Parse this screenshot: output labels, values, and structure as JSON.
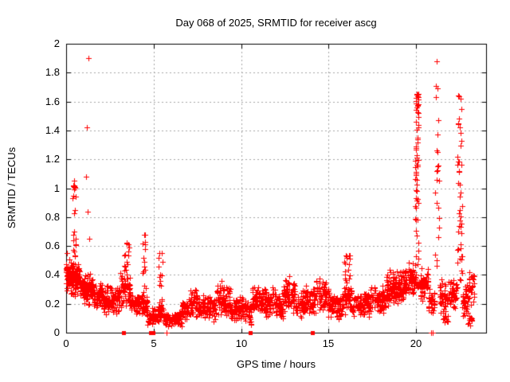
{
  "colors": {
    "marker": "#ff0000",
    "grid": "#a6a6a6",
    "axis": "#000000",
    "background": "#ffffff",
    "text": "#000000"
  },
  "chart_data": {
    "type": "scatter",
    "title": "Day 068 of 2025, SRMTID for receiver ascg",
    "xlabel": "GPS time / hours",
    "ylabel": "SRMTID / TECUs",
    "xlim": [
      0,
      24
    ],
    "ylim": [
      0,
      2
    ],
    "grid": true,
    "legend": "none",
    "marker": {
      "shape": "plus",
      "color": "#ff0000",
      "size": 7
    },
    "zero_marker": {
      "shape": "filled-square",
      "color": "#ff0000",
      "size": 5
    },
    "seed": 42,
    "xticks": [
      {
        "v": 0,
        "t": "0"
      },
      {
        "v": 5,
        "t": "5"
      },
      {
        "v": 10,
        "t": "10"
      },
      {
        "v": 15,
        "t": "15"
      },
      {
        "v": 20,
        "t": "20"
      }
    ],
    "yticks": [
      {
        "v": 0,
        "t": "0"
      },
      {
        "v": 0.2,
        "t": "0.2"
      },
      {
        "v": 0.4,
        "t": "0.4"
      },
      {
        "v": 0.6,
        "t": "0.6"
      },
      {
        "v": 0.8,
        "t": "0.8"
      },
      {
        "v": 1,
        "t": "1"
      },
      {
        "v": 1.2,
        "t": "1.2"
      },
      {
        "v": 1.4,
        "t": "1.4"
      },
      {
        "v": 1.6,
        "t": "1.6"
      },
      {
        "v": 1.8,
        "t": "1.8"
      },
      {
        "v": 2,
        "t": "2"
      }
    ],
    "band_segments": [
      [
        0.0,
        0.25,
        0.26,
        0.52,
        55
      ],
      [
        0.25,
        0.45,
        0.25,
        0.5,
        45
      ],
      [
        0.45,
        0.8,
        0.24,
        0.5,
        55
      ],
      [
        0.8,
        1.1,
        0.2,
        0.4,
        45
      ],
      [
        1.1,
        1.5,
        0.17,
        0.44,
        55
      ],
      [
        1.5,
        2.1,
        0.14,
        0.36,
        70
      ],
      [
        2.1,
        3.1,
        0.12,
        0.33,
        110
      ],
      [
        3.1,
        3.65,
        0.15,
        0.45,
        55
      ],
      [
        3.65,
        4.3,
        0.11,
        0.3,
        65
      ],
      [
        4.3,
        4.65,
        0.1,
        0.28,
        32
      ],
      [
        4.65,
        5.25,
        0.05,
        0.17,
        60
      ],
      [
        5.25,
        5.6,
        0.07,
        0.2,
        35
      ],
      [
        5.6,
        6.6,
        0.04,
        0.15,
        95
      ],
      [
        6.6,
        7.1,
        0.07,
        0.24,
        50
      ],
      [
        7.1,
        7.6,
        0.1,
        0.32,
        55
      ],
      [
        7.6,
        8.6,
        0.07,
        0.26,
        100
      ],
      [
        8.6,
        9.4,
        0.1,
        0.37,
        85
      ],
      [
        9.4,
        10.4,
        0.07,
        0.26,
        100
      ],
      [
        10.4,
        10.6,
        0.02,
        0.2,
        18
      ],
      [
        10.6,
        11.2,
        0.1,
        0.33,
        60
      ],
      [
        11.2,
        12.0,
        0.1,
        0.33,
        80
      ],
      [
        12.0,
        12.4,
        0.08,
        0.28,
        40
      ],
      [
        12.4,
        13.1,
        0.12,
        0.4,
        70
      ],
      [
        13.1,
        13.7,
        0.1,
        0.3,
        55
      ],
      [
        13.7,
        14.3,
        0.12,
        0.33,
        55
      ],
      [
        14.3,
        15.0,
        0.13,
        0.38,
        65
      ],
      [
        15.0,
        15.85,
        0.08,
        0.28,
        80
      ],
      [
        15.85,
        16.35,
        0.12,
        0.33,
        45
      ],
      [
        16.35,
        17.4,
        0.1,
        0.3,
        95
      ],
      [
        17.4,
        18.3,
        0.13,
        0.35,
        85
      ],
      [
        18.3,
        19.3,
        0.18,
        0.45,
        130
      ],
      [
        19.3,
        19.95,
        0.22,
        0.5,
        70
      ],
      [
        20.15,
        20.7,
        0.2,
        0.45,
        55
      ],
      [
        20.7,
        21.05,
        0.1,
        0.35,
        35
      ],
      [
        21.35,
        21.8,
        0.12,
        0.38,
        45
      ],
      [
        21.55,
        21.8,
        0.05,
        0.15,
        10
      ],
      [
        21.8,
        22.35,
        0.15,
        0.4,
        50
      ],
      [
        22.65,
        23.0,
        0.1,
        0.35,
        40
      ],
      [
        22.95,
        23.2,
        0.03,
        0.15,
        15
      ],
      [
        23.0,
        23.35,
        0.18,
        0.45,
        28
      ]
    ],
    "spike_columns": [
      [
        0.38,
        0.55,
        0.52,
        1.06,
        20
      ],
      [
        3.3,
        3.6,
        0.35,
        0.63,
        15
      ],
      [
        4.35,
        4.55,
        0.2,
        0.68,
        18
      ],
      [
        5.25,
        5.5,
        0.15,
        0.56,
        15
      ],
      [
        15.9,
        16.3,
        0.25,
        0.54,
        22
      ],
      [
        19.95,
        20.15,
        0.3,
        1.66,
        60
      ],
      [
        19.98,
        20.12,
        1.52,
        1.66,
        10
      ],
      [
        21.08,
        21.32,
        0.45,
        1.35,
        14
      ],
      [
        22.35,
        22.65,
        0.3,
        1.65,
        42
      ]
    ],
    "outlier_points": [
      [
        1.19,
        1.42
      ],
      [
        1.26,
        1.9
      ],
      [
        1.13,
        1.08
      ],
      [
        1.22,
        0.84
      ],
      [
        1.31,
        0.65
      ],
      [
        0.44,
        1.05
      ],
      [
        0.47,
        1.02
      ],
      [
        0.45,
        0.99
      ],
      [
        0.43,
        0.95
      ],
      [
        0.05,
        0.55
      ],
      [
        21.18,
        1.88
      ],
      [
        21.15,
        1.71
      ],
      [
        21.21,
        1.69
      ],
      [
        21.12,
        1.63
      ],
      [
        21.26,
        1.47
      ],
      [
        21.2,
        1.37
      ],
      [
        21.24,
        1.25
      ],
      [
        21.16,
        1.12
      ],
      [
        21.3,
        1.05
      ],
      [
        22.42,
        1.64
      ],
      [
        22.55,
        1.62
      ],
      [
        22.4,
        1.45
      ],
      [
        22.5,
        1.42
      ],
      [
        22.6,
        1.33
      ],
      [
        16.05,
        0.53
      ],
      [
        4.45,
        0.68
      ],
      [
        3.45,
        0.62
      ],
      [
        5.35,
        0.55
      ]
    ],
    "zero_squares_x": [
      3.28,
      4.85,
      4.97,
      10.52,
      14.05
    ],
    "zero_plus_x": [
      5.72,
      20.88,
      20.97
    ]
  }
}
